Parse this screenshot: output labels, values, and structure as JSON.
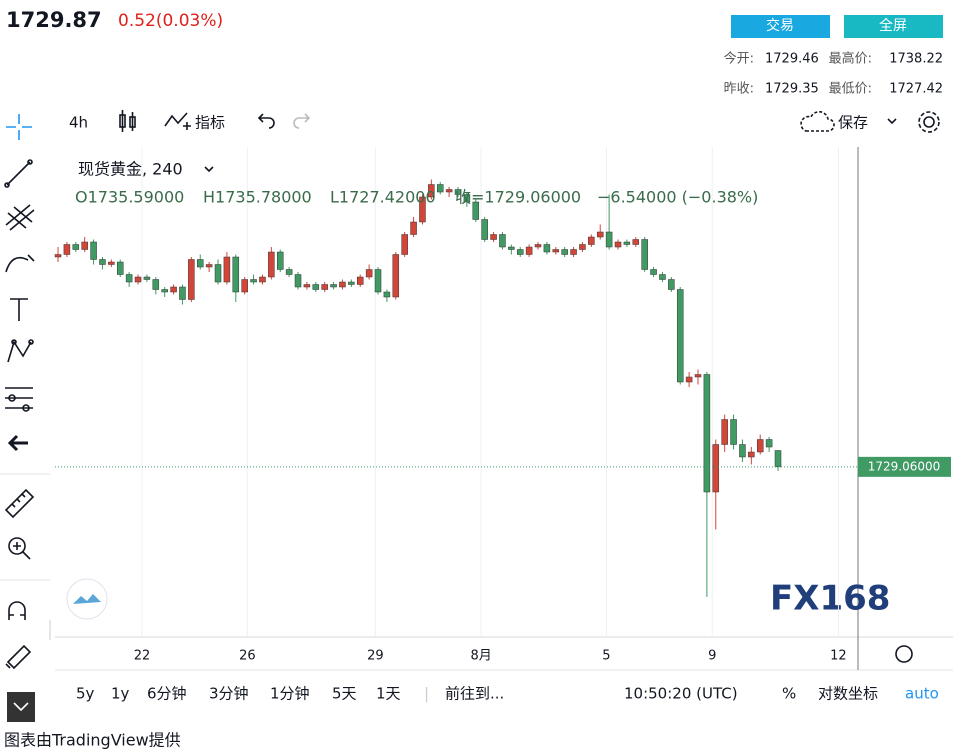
{
  "header": {
    "price": "1729.87",
    "change": "0.52(0.03%)",
    "buttons": [
      "交易",
      "全屏"
    ],
    "stats": [
      {
        "label": "今开:",
        "value": "1729.46"
      },
      {
        "label": "最高价:",
        "value": "1738.22"
      },
      {
        "label": "昨收:",
        "value": "1729.35"
      },
      {
        "label": "最低价:",
        "value": "1727.42"
      }
    ]
  },
  "toolbar": {
    "interval": "4h",
    "indicators": "指标",
    "save": "保存"
  },
  "chart_data": {
    "type": "candlestick",
    "symbol": "现货黄金, 240",
    "legend": [
      "O1735.59000",
      "H1735.78000",
      "L1727.42000",
      "收=1729.06000",
      "−6.54000 (−0.38%)"
    ],
    "last_price_label": "1729.06000",
    "watermark": "FX168",
    "up_color": "#d2463a",
    "down_color": "#3f9a64",
    "xlim": [
      -0.34,
      90
    ],
    "ylim": [
      1661,
      1857
    ],
    "xticks": [
      {
        "value": 9.45,
        "label": "22"
      },
      {
        "value": 21.3,
        "label": "26"
      },
      {
        "value": 35.7,
        "label": "29"
      },
      {
        "value": 47.6,
        "label": "8月"
      },
      {
        "value": 61.7,
        "label": "5"
      },
      {
        "value": 73.6,
        "label": "9"
      },
      {
        "value": 87.8,
        "label": "12"
      }
    ],
    "ohlc": [
      [
        1813,
        1817,
        1811,
        1814
      ],
      [
        1814,
        1819,
        1813,
        1818
      ],
      [
        1818,
        1819,
        1815,
        1816
      ],
      [
        1816,
        1821,
        1815,
        1819
      ],
      [
        1819,
        1820,
        1810,
        1812
      ],
      [
        1812,
        1813,
        1808,
        1810
      ],
      [
        1810,
        1812,
        1809,
        1811
      ],
      [
        1811,
        1812,
        1805,
        1806
      ],
      [
        1806,
        1807,
        1801,
        1803
      ],
      [
        1803,
        1806,
        1802,
        1805
      ],
      [
        1805,
        1806,
        1803,
        1804
      ],
      [
        1804,
        1805,
        1798,
        1800
      ],
      [
        1800,
        1801,
        1797,
        1799
      ],
      [
        1799,
        1802,
        1798,
        1801
      ],
      [
        1801,
        1802,
        1794,
        1796
      ],
      [
        1796,
        1813,
        1795,
        1812
      ],
      [
        1812,
        1814,
        1808,
        1809
      ],
      [
        1809,
        1811,
        1807,
        1810
      ],
      [
        1810,
        1812,
        1802,
        1803
      ],
      [
        1803,
        1815,
        1802,
        1813
      ],
      [
        1813,
        1814,
        1795,
        1799
      ],
      [
        1799,
        1805,
        1798,
        1804
      ],
      [
        1804,
        1806,
        1802,
        1803
      ],
      [
        1803,
        1806,
        1802,
        1805
      ],
      [
        1805,
        1817,
        1804,
        1815
      ],
      [
        1815,
        1816,
        1807,
        1808
      ],
      [
        1808,
        1809,
        1805,
        1806
      ],
      [
        1806,
        1807,
        1800,
        1801
      ],
      [
        1801,
        1803,
        1800,
        1802
      ],
      [
        1802,
        1803,
        1799,
        1800
      ],
      [
        1800,
        1803,
        1799,
        1802
      ],
      [
        1802,
        1803,
        1800,
        1801
      ],
      [
        1801,
        1804,
        1800,
        1803
      ],
      [
        1803,
        1804,
        1801,
        1802
      ],
      [
        1802,
        1806,
        1801,
        1805
      ],
      [
        1805,
        1810,
        1804,
        1808
      ],
      [
        1808,
        1809,
        1798,
        1799
      ],
      [
        1799,
        1800,
        1795,
        1797
      ],
      [
        1797,
        1815,
        1796,
        1814
      ],
      [
        1814,
        1823,
        1813,
        1822
      ],
      [
        1822,
        1829,
        1821,
        1827
      ],
      [
        1827,
        1838,
        1826,
        1837
      ],
      [
        1837,
        1844,
        1836,
        1842
      ],
      [
        1842,
        1843,
        1838,
        1839
      ],
      [
        1839,
        1841,
        1837,
        1840
      ],
      [
        1840,
        1841,
        1837,
        1838
      ],
      [
        1838,
        1839,
        1833,
        1835
      ],
      [
        1835,
        1836,
        1827,
        1828
      ],
      [
        1828,
        1829,
        1819,
        1820
      ],
      [
        1820,
        1823,
        1819,
        1822
      ],
      [
        1822,
        1823,
        1816,
        1817
      ],
      [
        1817,
        1818,
        1814,
        1816
      ],
      [
        1816,
        1817,
        1813,
        1814
      ],
      [
        1814,
        1818,
        1813,
        1817
      ],
      [
        1817,
        1819,
        1816,
        1818
      ],
      [
        1818,
        1819,
        1814,
        1815
      ],
      [
        1815,
        1817,
        1814,
        1816
      ],
      [
        1816,
        1817,
        1813,
        1814
      ],
      [
        1814,
        1817,
        1813,
        1816
      ],
      [
        1816,
        1819,
        1815,
        1818
      ],
      [
        1818,
        1822,
        1817,
        1821
      ],
      [
        1821,
        1826,
        1820,
        1823
      ],
      [
        1823,
        1838,
        1816,
        1817
      ],
      [
        1817,
        1820,
        1816,
        1819
      ],
      [
        1819,
        1820,
        1817,
        1818
      ],
      [
        1818,
        1821,
        1817,
        1820
      ],
      [
        1820,
        1821,
        1807,
        1808
      ],
      [
        1808,
        1809,
        1805,
        1806
      ],
      [
        1806,
        1807,
        1803,
        1804
      ],
      [
        1804,
        1805,
        1799,
        1800
      ],
      [
        1800,
        1801,
        1762,
        1763
      ],
      [
        1763,
        1767,
        1761,
        1765
      ],
      [
        1765,
        1768,
        1762,
        1766
      ],
      [
        1766,
        1767,
        1677,
        1719
      ],
      [
        1719,
        1740,
        1704,
        1738
      ],
      [
        1738,
        1750,
        1735,
        1748
      ],
      [
        1748,
        1750,
        1736,
        1738
      ],
      [
        1738,
        1740,
        1731,
        1733
      ],
      [
        1733,
        1737,
        1730,
        1735
      ],
      [
        1735,
        1742,
        1734,
        1740
      ],
      [
        1740,
        1741,
        1735,
        1737
      ],
      [
        1735.59,
        1735.78,
        1727.42,
        1729.06
      ]
    ]
  },
  "bottom": {
    "ranges": [
      "5y",
      "1y",
      "6分钟",
      "3分钟",
      "1分钟",
      "5天",
      "1天"
    ],
    "goto": "前往到...",
    "time": "10:50:20 (UTC)",
    "percent": "%",
    "log": "对数坐标",
    "auto": "auto"
  },
  "footer": "图表由TradingView提供"
}
